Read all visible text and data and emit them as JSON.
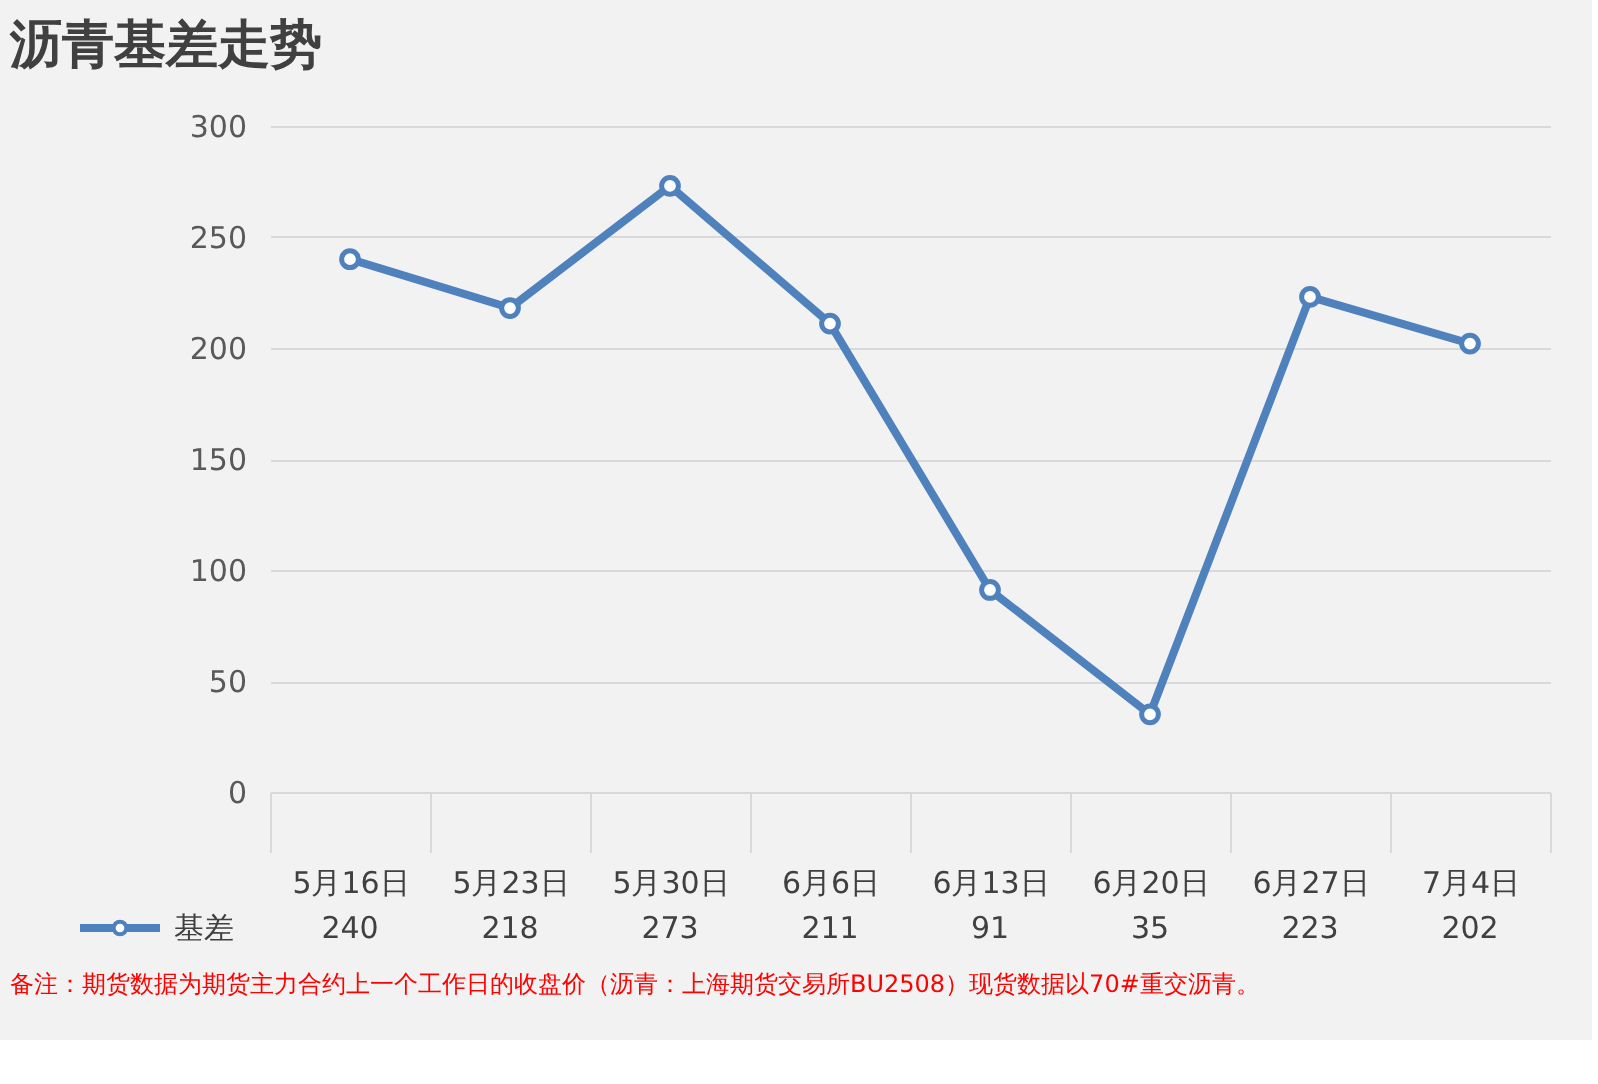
{
  "chart_data": {
    "type": "line",
    "title": "沥青基差走势",
    "categories": [
      "5月16日",
      "5月23日",
      "5月30日",
      "6月6日",
      "6月13日",
      "6月20日",
      "6月27日",
      "7月4日"
    ],
    "series": [
      {
        "name": "基差",
        "color": "#4f81bd",
        "values": [
          240,
          218,
          273,
          211,
          91,
          35,
          223,
          202
        ]
      }
    ],
    "ylim": [
      0,
      300
    ],
    "yticks": [
      0,
      50,
      100,
      150,
      200,
      250,
      300
    ],
    "grid": "y",
    "marker": "circle",
    "line_style": "solid",
    "data_labels": true,
    "legend": "bottom left",
    "annotations": [
      "备注：期货数据为期货主力合约上一个工作日的收盘价（沥青：上海期货交易所BU2508）现货数据以70#重交沥青。"
    ]
  }
}
